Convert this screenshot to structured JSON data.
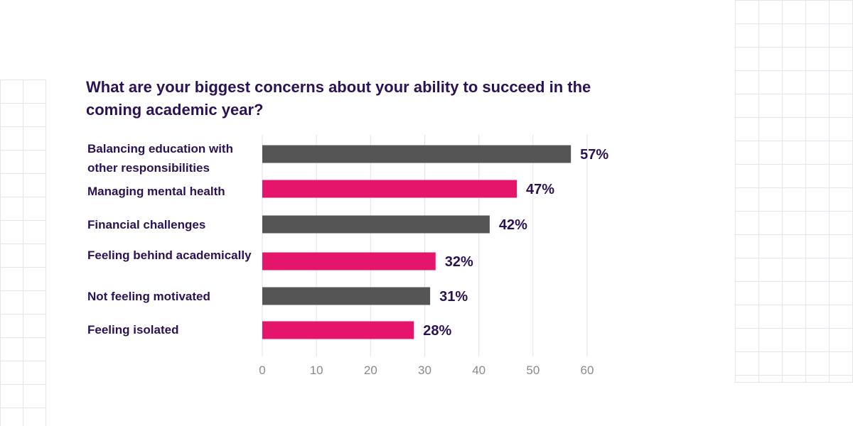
{
  "chart_data": {
    "type": "bar",
    "orientation": "horizontal",
    "title": "What are your biggest concerns about your ability to succeed in the coming academic year?",
    "categories": [
      "Balancing education with other responsibilities",
      "Managing mental health",
      "Financial challenges",
      "Feeling behind academically",
      "Not feeling motivated",
      "Feeling isolated"
    ],
    "values": [
      57,
      47,
      42,
      32,
      31,
      28
    ],
    "value_labels": [
      "57%",
      "47%",
      "42%",
      "32%",
      "31%",
      "28%"
    ],
    "bar_colors": [
      "#555555",
      "#e5156b",
      "#555555",
      "#e5156b",
      "#555555",
      "#e5156b"
    ],
    "xlim": [
      0,
      60
    ],
    "x_ticks": [
      0,
      10,
      20,
      30,
      40,
      50,
      60
    ],
    "grid": "vertical"
  },
  "colors": {
    "title": "#2b1255",
    "value_label": "#2b1255",
    "tick_label": "#8a8a8a",
    "gridline": "#e2e2e2"
  }
}
